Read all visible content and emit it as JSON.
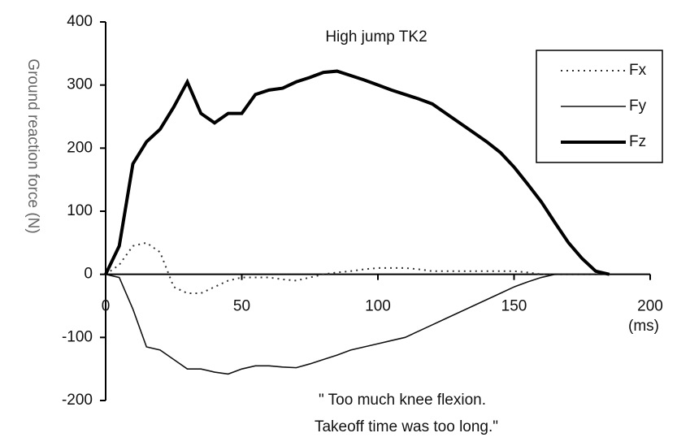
{
  "chart_data": {
    "type": "line",
    "title": "High jump  TK2",
    "y_label": "Ground reaction force (N)",
    "x_unit": "(ms)",
    "annotation": [
      "\" Too much knee flexion.",
      "Takeoff time was too long.\""
    ],
    "x": [
      0,
      5,
      10,
      15,
      20,
      25,
      30,
      35,
      40,
      45,
      50,
      55,
      60,
      65,
      70,
      75,
      80,
      85,
      90,
      95,
      100,
      105,
      110,
      115,
      120,
      125,
      130,
      135,
      140,
      145,
      150,
      155,
      160,
      165,
      170,
      175,
      180,
      185
    ],
    "series": [
      {
        "name": "Fx",
        "color": "#333333",
        "style": "dotted",
        "values": [
          0,
          15,
          45,
          50,
          35,
          -20,
          -30,
          -30,
          -20,
          -10,
          -5,
          -5,
          -5,
          -8,
          -10,
          -5,
          0,
          3,
          5,
          8,
          10,
          10,
          10,
          8,
          5,
          5,
          5,
          5,
          5,
          5,
          5,
          3,
          0,
          0,
          0,
          0,
          0,
          0
        ]
      },
      {
        "name": "Fy",
        "color": "#111111",
        "style": "thin",
        "values": [
          0,
          -5,
          -55,
          -115,
          -120,
          -135,
          -150,
          -150,
          -155,
          -158,
          -150,
          -145,
          -145,
          -147,
          -148,
          -142,
          -135,
          -128,
          -120,
          -115,
          -110,
          -105,
          -100,
          -90,
          -80,
          -70,
          -60,
          -50,
          -40,
          -30,
          -20,
          -12,
          -5,
          0,
          0,
          0,
          0,
          0
        ]
      },
      {
        "name": "Fz",
        "color": "#000000",
        "style": "thick",
        "values": [
          0,
          45,
          175,
          210,
          230,
          265,
          305,
          255,
          240,
          255,
          255,
          285,
          292,
          295,
          305,
          312,
          320,
          322,
          315,
          308,
          300,
          292,
          285,
          278,
          270,
          255,
          240,
          225,
          210,
          193,
          170,
          143,
          115,
          82,
          50,
          25,
          5,
          0
        ]
      }
    ],
    "xlim": [
      0,
      200
    ],
    "xticks": [
      0,
      50,
      100,
      150,
      200
    ],
    "ylim": [
      -200,
      400
    ],
    "yticks": [
      -200,
      -100,
      0,
      100,
      200,
      300,
      400
    ]
  }
}
